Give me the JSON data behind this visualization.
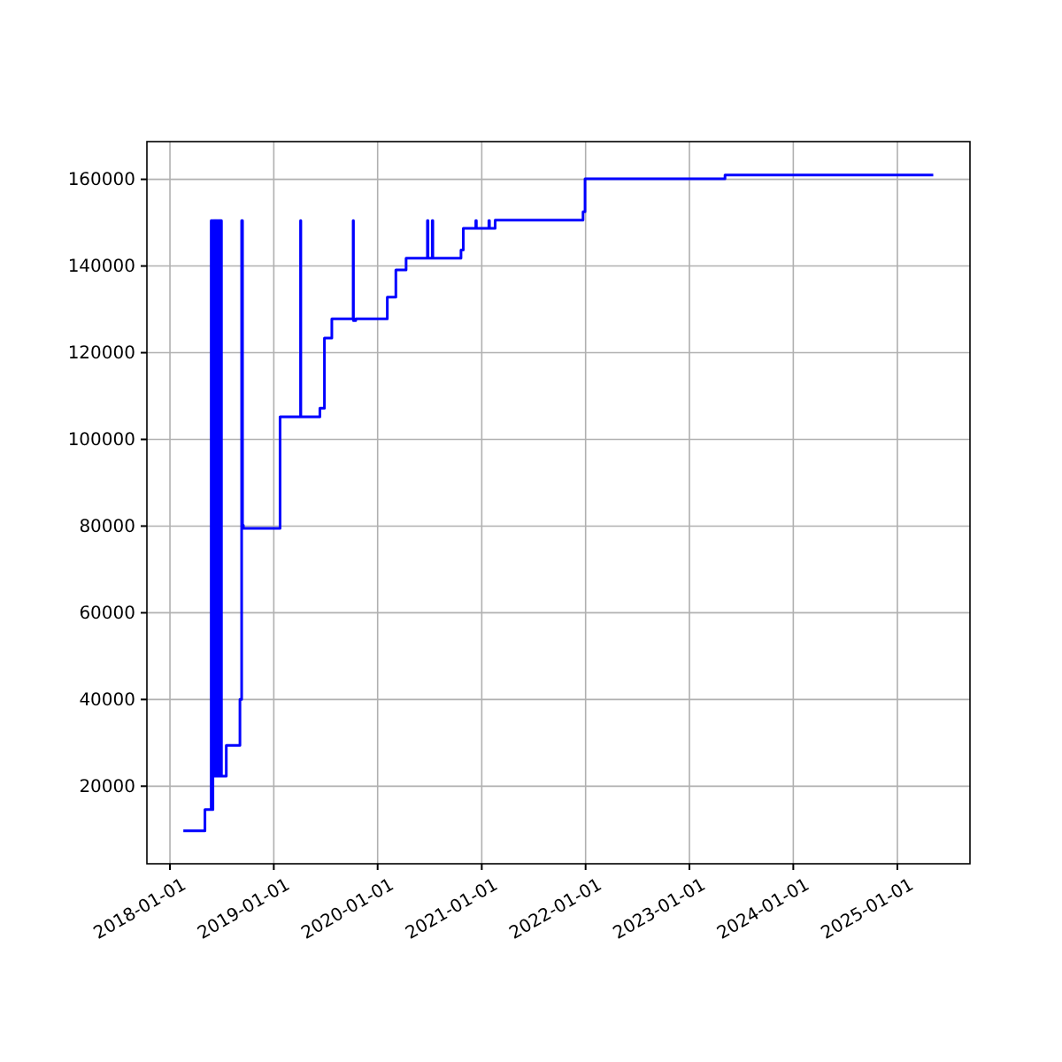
{
  "chart_data": {
    "type": "step",
    "x": [
      "2018-02-17",
      "2018-04-13",
      "2018-05-04",
      "2018-05-25",
      "2018-05-26",
      "2018-05-29",
      "2018-06-01",
      "2018-06-03",
      "2018-06-05",
      "2018-06-07",
      "2018-06-09",
      "2018-06-11",
      "2018-06-13",
      "2018-06-15",
      "2018-06-17",
      "2018-06-19",
      "2018-06-21",
      "2018-06-23",
      "2018-06-25",
      "2018-06-27",
      "2018-06-29",
      "2018-07-01",
      "2018-07-03",
      "2018-07-18",
      "2018-09-04",
      "2018-09-10",
      "2018-09-13",
      "2018-09-16",
      "2018-09-20",
      "2019-01-23",
      "2019-04-05",
      "2019-04-06",
      "2019-06-12",
      "2019-06-28",
      "2019-07-24",
      "2019-10-07",
      "2019-10-08",
      "2019-10-16",
      "2020-02-04",
      "2020-03-05",
      "2020-04-10",
      "2020-06-24",
      "2020-06-26",
      "2020-07-11",
      "2020-07-13",
      "2020-10-20",
      "2020-10-28",
      "2020-12-11",
      "2020-12-13",
      "2021-01-26",
      "2021-01-28",
      "2021-02-17",
      "2021-12-23",
      "2021-12-30",
      "2022-01-07",
      "2023-05-06",
      "2025-05-07"
    ],
    "values": [
      9700,
      9700,
      14600,
      14600,
      150500,
      14600,
      150500,
      22300,
      150500,
      22300,
      150500,
      22300,
      150500,
      22300,
      150500,
      22300,
      150500,
      22300,
      150500,
      22300,
      150500,
      22300,
      22300,
      29400,
      40000,
      150500,
      80200,
      79500,
      79500,
      105200,
      150500,
      105200,
      107200,
      123400,
      127800,
      150500,
      127400,
      127800,
      132800,
      139100,
      141800,
      150500,
      141800,
      150500,
      141800,
      143700,
      148700,
      150500,
      148700,
      150500,
      148700,
      150600,
      152500,
      160100,
      160100,
      161000,
      161000
    ],
    "color": "#0000ff",
    "xlim": [
      "2017-10-12",
      "2025-09-13"
    ],
    "ylim": [
      2100,
      168700
    ],
    "xticks": [
      "2018-01-01",
      "2019-01-01",
      "2020-01-01",
      "2021-01-01",
      "2022-01-01",
      "2023-01-01",
      "2024-01-01",
      "2025-01-01"
    ],
    "yticks": [
      20000,
      40000,
      60000,
      80000,
      100000,
      120000,
      140000,
      160000
    ],
    "grid": true
  }
}
